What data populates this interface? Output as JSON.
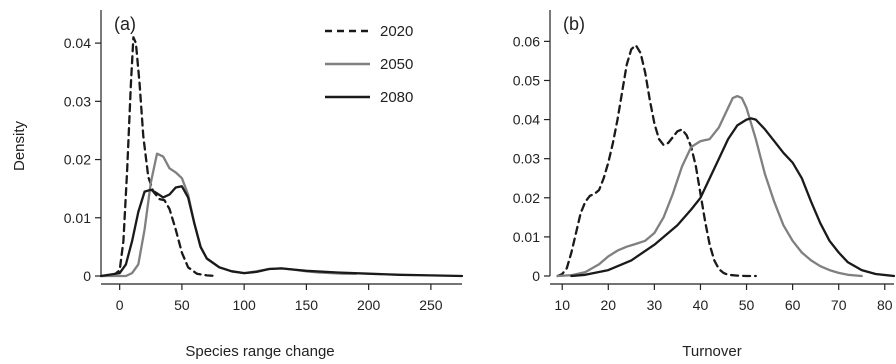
{
  "figure": {
    "legend": [
      {
        "label": "2020",
        "style": "dashed",
        "color": "#1a1a1a"
      },
      {
        "label": "2050",
        "style": "solid",
        "color": "#808080"
      },
      {
        "label": "2080",
        "style": "solid",
        "color": "#1a1a1a"
      }
    ]
  },
  "chart_data": [
    {
      "type": "line",
      "panel_label": "(a)",
      "xlabel": "Species range change",
      "ylabel": "Density",
      "xlim": [
        -15,
        275
      ],
      "ylim": [
        0,
        0.045
      ],
      "xticks": [
        0,
        50,
        100,
        150,
        200,
        250
      ],
      "yticks": [
        0,
        0.01,
        0.02,
        0.03,
        0.04
      ],
      "ytick_labels": [
        "0",
        "0.01",
        "0.02",
        "0.03",
        "0.04"
      ],
      "grid": false,
      "legend_position": "top-right",
      "series": [
        {
          "name": "2020",
          "style": "dashed",
          "color": "#1a1a1a",
          "x": [
            -15,
            -5,
            0,
            3,
            6,
            9,
            11,
            13,
            16,
            19,
            23,
            27,
            32,
            36,
            40,
            45,
            50,
            55,
            62,
            70,
            78
          ],
          "y": [
            0,
            0.0001,
            0.001,
            0.006,
            0.018,
            0.033,
            0.041,
            0.04,
            0.033,
            0.024,
            0.017,
            0.0145,
            0.0132,
            0.013,
            0.0115,
            0.008,
            0.004,
            0.0015,
            0.0004,
            0.0001,
            0
          ]
        },
        {
          "name": "2050",
          "style": "solid",
          "color": "#808080",
          "x": [
            -15,
            5,
            10,
            15,
            20,
            25,
            30,
            35,
            40,
            45,
            50,
            55,
            60,
            65,
            70,
            80,
            90,
            100,
            110,
            120,
            130,
            140,
            150,
            160,
            170,
            180,
            190
          ],
          "y": [
            0,
            0,
            0.0005,
            0.002,
            0.008,
            0.016,
            0.021,
            0.0205,
            0.0185,
            0.0178,
            0.0168,
            0.014,
            0.009,
            0.005,
            0.003,
            0.0015,
            0.0008,
            0.0005,
            0.0008,
            0.0012,
            0.0013,
            0.0011,
            0.0008,
            0.0006,
            0.0005,
            0.0004,
            0.0004
          ]
        },
        {
          "name": "2080",
          "style": "solid",
          "color": "#1a1a1a",
          "x": [
            -15,
            0,
            5,
            10,
            15,
            20,
            25,
            30,
            35,
            40,
            45,
            50,
            55,
            60,
            65,
            70,
            80,
            90,
            100,
            110,
            120,
            130,
            140,
            150,
            175,
            200,
            225,
            250,
            275
          ],
          "y": [
            0,
            0.0005,
            0.002,
            0.006,
            0.011,
            0.0145,
            0.0148,
            0.0142,
            0.0135,
            0.014,
            0.0152,
            0.0154,
            0.0135,
            0.009,
            0.005,
            0.003,
            0.0015,
            0.0008,
            0.0005,
            0.0007,
            0.0012,
            0.0013,
            0.0011,
            0.0009,
            0.0006,
            0.0004,
            0.0002,
            0.0001,
            0
          ]
        }
      ]
    },
    {
      "type": "line",
      "panel_label": "(b)",
      "xlabel": "Turnover",
      "ylabel": "",
      "xlim": [
        8,
        82
      ],
      "ylim": [
        0,
        0.067
      ],
      "xticks": [
        10,
        20,
        30,
        40,
        50,
        60,
        70,
        80
      ],
      "yticks": [
        0,
        0.01,
        0.02,
        0.03,
        0.04,
        0.05,
        0.06
      ],
      "ytick_labels": [
        "0",
        "0.01",
        "0.02",
        "0.03",
        "0.04",
        "0.05",
        "0.06"
      ],
      "grid": false,
      "series": [
        {
          "name": "2020",
          "style": "dashed",
          "color": "#1a1a1a",
          "x": [
            9,
            10,
            11,
            12,
            13,
            14,
            15,
            16,
            17,
            18,
            19,
            20,
            21,
            22,
            23,
            24,
            25,
            26,
            27,
            28,
            29,
            30,
            31,
            32,
            33,
            34,
            35,
            36,
            37,
            38,
            39,
            40,
            41,
            42,
            43,
            44,
            45,
            46,
            48,
            50,
            52
          ],
          "y": [
            0,
            0.0005,
            0.002,
            0.006,
            0.011,
            0.016,
            0.019,
            0.0205,
            0.021,
            0.022,
            0.025,
            0.029,
            0.034,
            0.04,
            0.047,
            0.054,
            0.058,
            0.059,
            0.057,
            0.052,
            0.045,
            0.039,
            0.035,
            0.0335,
            0.034,
            0.0355,
            0.037,
            0.0375,
            0.036,
            0.033,
            0.028,
            0.021,
            0.014,
            0.008,
            0.004,
            0.0018,
            0.0008,
            0.0003,
            0.0001,
            0,
            0
          ]
        },
        {
          "name": "2050",
          "style": "solid",
          "color": "#808080",
          "x": [
            9,
            12,
            15,
            18,
            20,
            22,
            24,
            26,
            28,
            30,
            32,
            34,
            36,
            38,
            40,
            42,
            44,
            46,
            47,
            48,
            49,
            50,
            52,
            54,
            56,
            58,
            60,
            62,
            64,
            66,
            68,
            70,
            72,
            75
          ],
          "y": [
            0,
            0.0002,
            0.001,
            0.003,
            0.005,
            0.0065,
            0.0075,
            0.0082,
            0.009,
            0.011,
            0.015,
            0.021,
            0.028,
            0.033,
            0.0345,
            0.035,
            0.038,
            0.043,
            0.0455,
            0.046,
            0.0455,
            0.043,
            0.035,
            0.026,
            0.019,
            0.013,
            0.009,
            0.006,
            0.004,
            0.0025,
            0.0015,
            0.0008,
            0.0003,
            0
          ]
        },
        {
          "name": "2080",
          "style": "solid",
          "color": "#1a1a1a",
          "x": [
            12,
            15,
            20,
            25,
            30,
            35,
            38,
            40,
            42,
            44,
            46,
            48,
            50,
            51,
            52,
            54,
            56,
            58,
            60,
            62,
            64,
            66,
            68,
            70,
            72,
            75,
            78,
            82
          ],
          "y": [
            0,
            0.0003,
            0.0015,
            0.004,
            0.008,
            0.013,
            0.017,
            0.02,
            0.025,
            0.03,
            0.035,
            0.0385,
            0.04,
            0.0403,
            0.04,
            0.0375,
            0.0345,
            0.0315,
            0.029,
            0.025,
            0.019,
            0.0135,
            0.009,
            0.006,
            0.0035,
            0.0015,
            0.0005,
            0
          ]
        }
      ]
    }
  ]
}
